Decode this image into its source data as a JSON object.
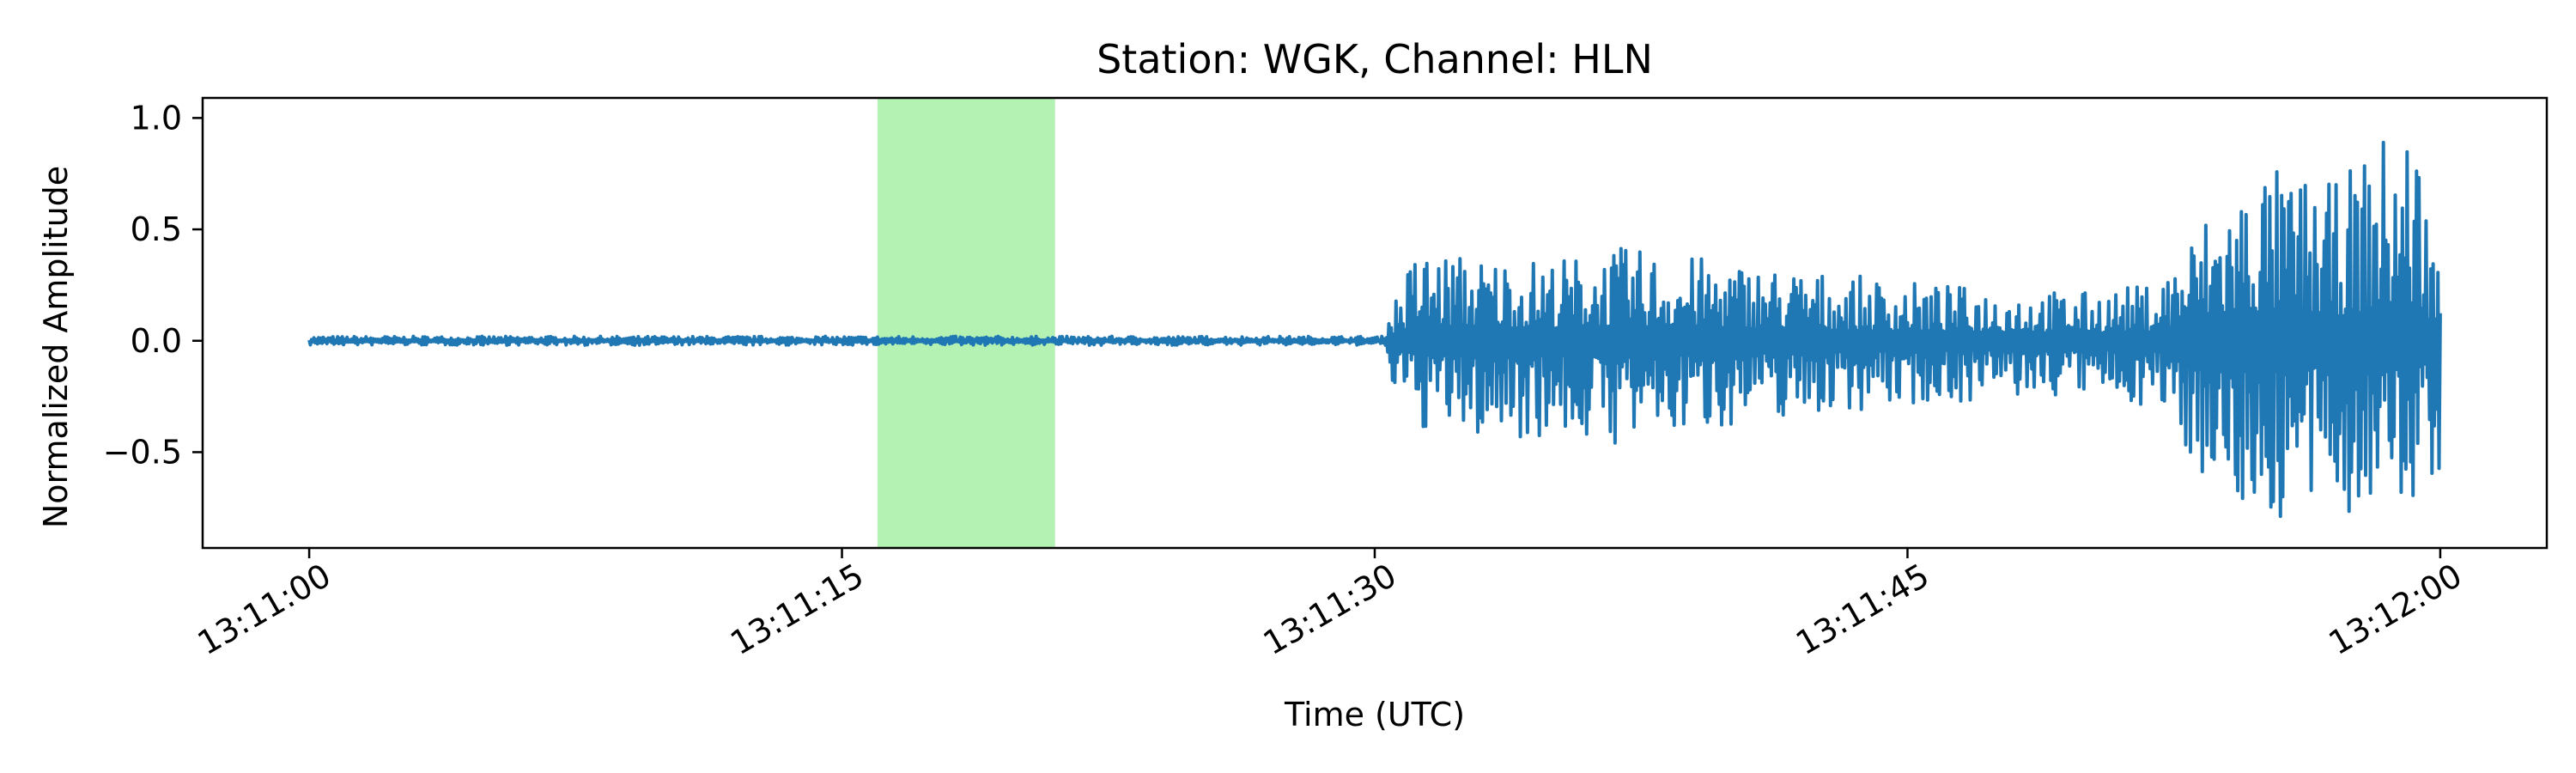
{
  "chart_data": {
    "type": "line",
    "title": "Station: WGK, Channel: HLN",
    "xlabel": "Time (UTC)",
    "ylabel": "Normalized Amplitude",
    "x_start": "13:11:00",
    "x_end": "13:12:00",
    "xlim_seconds": [
      -3,
      63
    ],
    "ylim": [
      -0.93,
      1.09
    ],
    "x_ticks": [
      {
        "t": 0,
        "label": "13:11:00"
      },
      {
        "t": 15,
        "label": "13:11:15"
      },
      {
        "t": 30,
        "label": "13:11:30"
      },
      {
        "t": 45,
        "label": "13:11:45"
      },
      {
        "t": 60,
        "label": "13:12:00"
      }
    ],
    "y_ticks": [
      {
        "v": 1.0,
        "label": "1.0"
      },
      {
        "v": 0.5,
        "label": "0.5"
      },
      {
        "v": 0.0,
        "label": "0.0"
      },
      {
        "v": -0.5,
        "label": "−0.5"
      }
    ],
    "highlight_span": {
      "t_start": 16.0,
      "t_end": 21.0,
      "color": "#b3f2b3"
    },
    "series": [
      {
        "color": "#1f77b4",
        "envelope": [
          {
            "t": 0,
            "pos": 0.02,
            "neg": -0.02
          },
          {
            "t": 30.2,
            "pos": 0.02,
            "neg": -0.02
          },
          {
            "t": 30.5,
            "pos": 0.18,
            "neg": -0.22
          },
          {
            "t": 31.2,
            "pos": 0.42,
            "neg": -0.4
          },
          {
            "t": 33,
            "pos": 0.38,
            "neg": -0.45
          },
          {
            "t": 35,
            "pos": 0.37,
            "neg": -0.43
          },
          {
            "t": 37,
            "pos": 0.42,
            "neg": -0.48
          },
          {
            "t": 40,
            "pos": 0.36,
            "neg": -0.38
          },
          {
            "t": 43,
            "pos": 0.3,
            "neg": -0.32
          },
          {
            "t": 46,
            "pos": 0.25,
            "neg": -0.28
          },
          {
            "t": 50,
            "pos": 0.22,
            "neg": -0.25
          },
          {
            "t": 52,
            "pos": 0.26,
            "neg": -0.3
          },
          {
            "t": 53.5,
            "pos": 0.6,
            "neg": -0.65
          },
          {
            "t": 55,
            "pos": 0.8,
            "neg": -0.85
          },
          {
            "t": 57,
            "pos": 0.7,
            "neg": -0.78
          },
          {
            "t": 58.5,
            "pos": 0.95,
            "neg": -0.8
          },
          {
            "t": 59.3,
            "pos": 1.0,
            "neg": -0.75
          },
          {
            "t": 60,
            "pos": 0.3,
            "neg": -0.6
          }
        ]
      }
    ]
  }
}
